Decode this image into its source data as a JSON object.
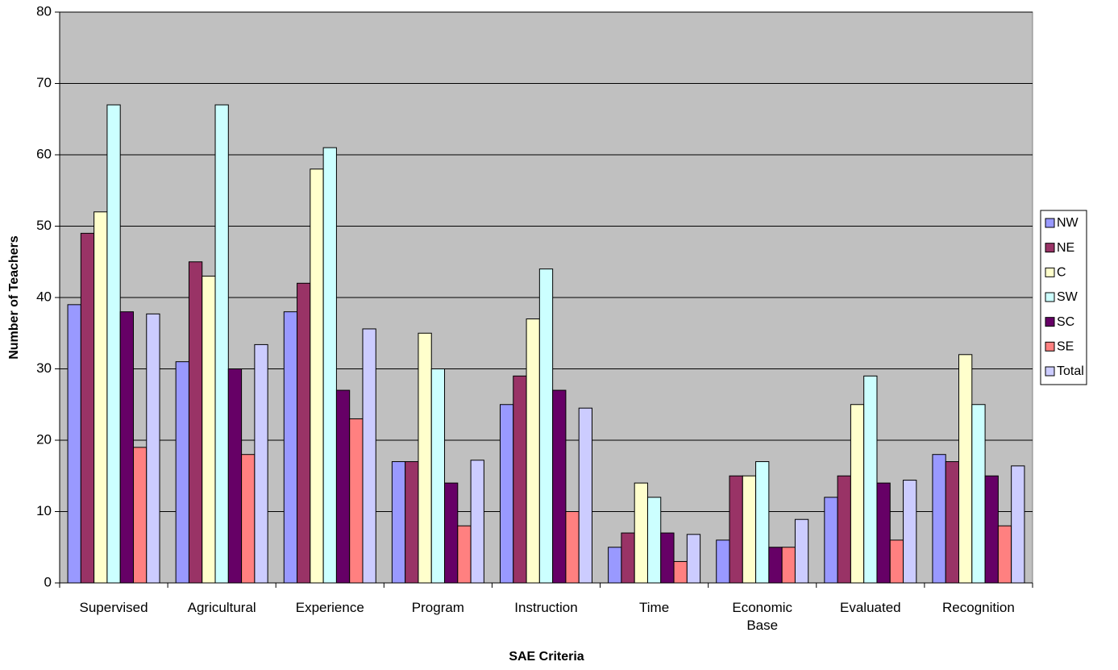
{
  "chart_data": {
    "type": "bar",
    "xlabel": "SAE Criteria",
    "ylabel": "Number of Teachers",
    "categories": [
      "Supervised",
      "Agricultural",
      "Experience",
      "Program",
      "Instruction",
      "Time",
      "Economic Base",
      "Evaluated",
      "Recognition"
    ],
    "series": [
      {
        "name": "NW",
        "color": "#9999ff",
        "values": [
          39,
          31,
          38,
          17,
          25,
          5,
          6,
          12,
          18
        ]
      },
      {
        "name": "NE",
        "color": "#993366",
        "values": [
          49,
          45,
          42,
          17,
          29,
          7,
          15,
          15,
          17
        ]
      },
      {
        "name": "C",
        "color": "#ffffcc",
        "values": [
          52,
          43,
          58,
          35,
          37,
          14,
          15,
          25,
          32
        ]
      },
      {
        "name": "SW",
        "color": "#ccffff",
        "values": [
          67,
          67,
          61,
          30,
          44,
          12,
          17,
          29,
          25
        ]
      },
      {
        "name": "SC",
        "color": "#660066",
        "values": [
          38,
          30,
          27,
          14,
          27,
          7,
          5,
          14,
          15
        ]
      },
      {
        "name": "SE",
        "color": "#ff8080",
        "values": [
          19,
          18,
          23,
          8,
          10,
          3,
          5,
          6,
          8
        ]
      },
      {
        "name": "Total",
        "color": "#ccccff",
        "values": [
          37.7,
          33.4,
          35.6,
          17.2,
          24.5,
          6.8,
          8.9,
          14.4,
          16.4
        ]
      }
    ],
    "ylim": [
      0,
      80
    ],
    "yticks": [
      0,
      10,
      20,
      30,
      40,
      50,
      60,
      70,
      80
    ],
    "grid": true,
    "plot_background": "#c0c0c0",
    "legend": "right"
  }
}
